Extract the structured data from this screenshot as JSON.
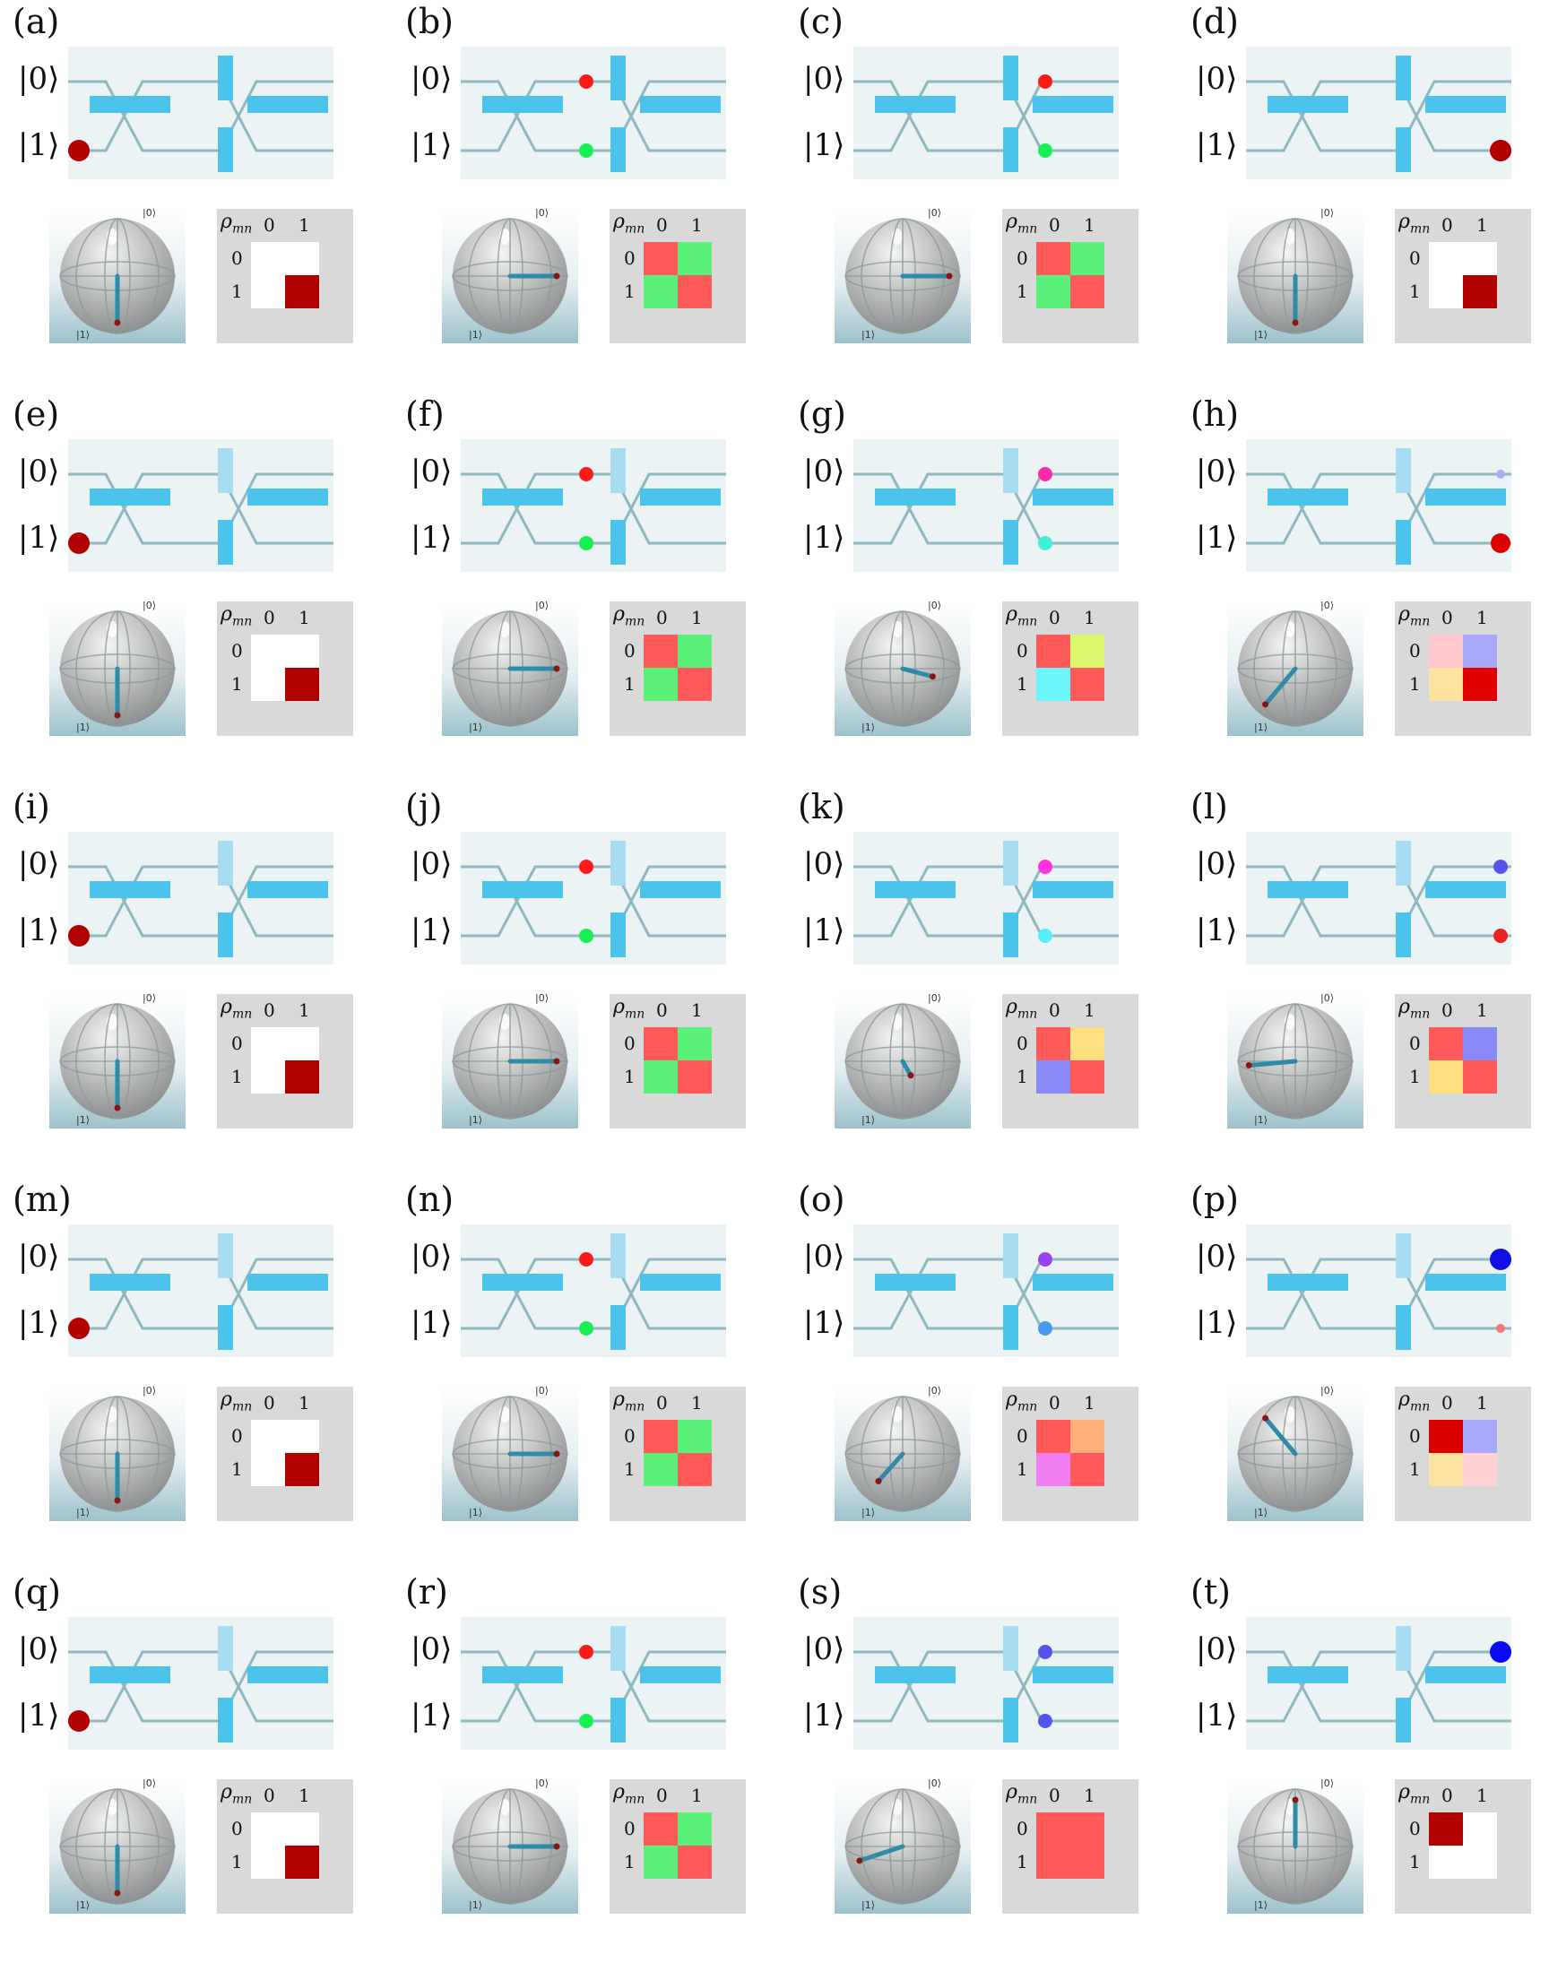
{
  "figure": {
    "ket0_label": "|0⟩",
    "ket1_label": "|1⟩",
    "bloch_top_label": "|0⟩",
    "bloch_bottom_label": "|1⟩",
    "rho_label": "ρ",
    "rho_sub": "mn",
    "rho_col0": "0",
    "rho_col1": "1",
    "rho_row0": "0",
    "rho_row1": "1",
    "colors": {
      "circuit_bg": "#ebf3f5",
      "waveguide": "#90b8c0",
      "beamsplitter": "#4cc3ea",
      "phase_light": "#a6ddf3",
      "phase_strong": "#2cb7ea",
      "rho_bg": "#d9d9d9"
    }
  },
  "panels": [
    {
      "label": "(a)",
      "step": 0,
      "photons": [
        {
          "pos": "in1",
          "color": "#b00000",
          "r": 12
        }
      ],
      "bloch": {
        "theta": 180,
        "phi": 0
      },
      "rho": [
        "#ffffff",
        "#ffffff",
        "#ffffff",
        "#b00000"
      ],
      "phase": {
        "top": "strong",
        "bottom": "strong"
      }
    },
    {
      "label": "(b)",
      "step": 1,
      "photons": [
        {
          "pos": "m0",
          "color": "#ff1a1a",
          "r": 8
        },
        {
          "pos": "m1",
          "color": "#1aee55",
          "r": 8
        }
      ],
      "bloch": {
        "theta": 90,
        "phi": 0
      },
      "rho": [
        "#ff5a5a",
        "#5af07a",
        "#5af07a",
        "#ff5a5a"
      ],
      "phase": {
        "top": "strong",
        "bottom": "strong"
      }
    },
    {
      "label": "(c)",
      "step": 2,
      "photons": [
        {
          "pos": "p0",
          "color": "#ff1a1a",
          "r": 8
        },
        {
          "pos": "p1",
          "color": "#1aee55",
          "r": 8
        }
      ],
      "bloch": {
        "theta": 90,
        "phi": 0
      },
      "rho": [
        "#ff5a5a",
        "#5af07a",
        "#5af07a",
        "#ff5a5a"
      ],
      "phase": {
        "top": "strong",
        "bottom": "strong"
      }
    },
    {
      "label": "(d)",
      "step": 3,
      "photons": [
        {
          "pos": "out1",
          "color": "#b00000",
          "r": 12
        }
      ],
      "bloch": {
        "theta": 180,
        "phi": 0
      },
      "rho": [
        "#ffffff",
        "#ffffff",
        "#ffffff",
        "#b00000"
      ],
      "phase": {
        "top": "strong",
        "bottom": "strong"
      }
    },
    {
      "label": "(e)",
      "step": 0,
      "photons": [
        {
          "pos": "in1",
          "color": "#b00000",
          "r": 12
        }
      ],
      "bloch": {
        "theta": 180,
        "phi": 0
      },
      "rho": [
        "#ffffff",
        "#ffffff",
        "#ffffff",
        "#b00000"
      ],
      "phase": {
        "top": "light",
        "bottom": "strong"
      }
    },
    {
      "label": "(f)",
      "step": 1,
      "photons": [
        {
          "pos": "m0",
          "color": "#ff1a1a",
          "r": 8
        },
        {
          "pos": "m1",
          "color": "#1aee55",
          "r": 8
        }
      ],
      "bloch": {
        "theta": 90,
        "phi": 0
      },
      "rho": [
        "#ff5a5a",
        "#5af07a",
        "#5af07a",
        "#ff5a5a"
      ],
      "phase": {
        "top": "light",
        "bottom": "strong"
      }
    },
    {
      "label": "(g)",
      "step": 2,
      "photons": [
        {
          "pos": "p0",
          "color": "#ff2aa8",
          "r": 8
        },
        {
          "pos": "p1",
          "color": "#40f0d8",
          "r": 8
        }
      ],
      "bloch": {
        "theta": 90,
        "phi": 50
      },
      "rho": [
        "#ff5a5a",
        "#ddf76c",
        "#6cf6fb",
        "#ff5a5a"
      ],
      "phase": {
        "top": "light",
        "bottom": "strong"
      }
    },
    {
      "label": "(h)",
      "step": 3,
      "photons": [
        {
          "pos": "out0",
          "color": "#aab0f0",
          "r": 5
        },
        {
          "pos": "out1",
          "color": "#dd0000",
          "r": 11
        }
      ],
      "bloch": {
        "theta": 140,
        "phi": 180
      },
      "rho": [
        "#ffc8cc",
        "#a8a8fb",
        "#fde3a0",
        "#e00000"
      ],
      "phase": {
        "top": "light",
        "bottom": "strong"
      }
    },
    {
      "label": "(i)",
      "step": 0,
      "photons": [
        {
          "pos": "in1",
          "color": "#b00000",
          "r": 12
        }
      ],
      "bloch": {
        "theta": 180,
        "phi": 0
      },
      "rho": [
        "#ffffff",
        "#ffffff",
        "#ffffff",
        "#b00000"
      ],
      "phase": {
        "top": "light",
        "bottom": "strong"
      }
    },
    {
      "label": "(j)",
      "step": 1,
      "photons": [
        {
          "pos": "m0",
          "color": "#ff1a1a",
          "r": 8
        },
        {
          "pos": "m1",
          "color": "#1aee55",
          "r": 8
        }
      ],
      "bloch": {
        "theta": 90,
        "phi": 0
      },
      "rho": [
        "#ff5a5a",
        "#5af07a",
        "#5af07a",
        "#ff5a5a"
      ],
      "phase": {
        "top": "light",
        "bottom": "strong"
      }
    },
    {
      "label": "(k)",
      "step": 2,
      "photons": [
        {
          "pos": "p0",
          "color": "#ff33dd",
          "r": 8
        },
        {
          "pos": "p1",
          "color": "#55eefa",
          "r": 8
        }
      ],
      "bloch": {
        "theta": 95,
        "phi": 80
      },
      "rho": [
        "#ff5a5a",
        "#ffe080",
        "#8a8af6",
        "#ff5a5a"
      ],
      "phase": {
        "top": "light",
        "bottom": "strong"
      }
    },
    {
      "label": "(l)",
      "step": 3,
      "photons": [
        {
          "pos": "out0",
          "color": "#5555ee",
          "r": 8
        },
        {
          "pos": "out1",
          "color": "#ee2222",
          "r": 8
        }
      ],
      "bloch": {
        "theta": 95,
        "phi": 180
      },
      "rho": [
        "#ff5a5a",
        "#8a8af6",
        "#ffe080",
        "#ff5a5a"
      ],
      "phase": {
        "top": "light",
        "bottom": "strong"
      }
    },
    {
      "label": "(m)",
      "step": 0,
      "photons": [
        {
          "pos": "in1",
          "color": "#b00000",
          "r": 12
        }
      ],
      "bloch": {
        "theta": 180,
        "phi": 0
      },
      "rho": [
        "#ffffff",
        "#ffffff",
        "#ffffff",
        "#b00000"
      ],
      "phase": {
        "top": "light",
        "bottom": "strong"
      }
    },
    {
      "label": "(n)",
      "step": 1,
      "photons": [
        {
          "pos": "m0",
          "color": "#ff1a1a",
          "r": 8
        },
        {
          "pos": "m1",
          "color": "#1aee55",
          "r": 8
        }
      ],
      "bloch": {
        "theta": 90,
        "phi": 0
      },
      "rho": [
        "#ff5a5a",
        "#5af07a",
        "#5af07a",
        "#ff5a5a"
      ],
      "phase": {
        "top": "light",
        "bottom": "strong"
      }
    },
    {
      "label": "(o)",
      "step": 2,
      "photons": [
        {
          "pos": "p0",
          "color": "#9a44ee",
          "r": 8
        },
        {
          "pos": "p1",
          "color": "#4a99ee",
          "r": 8
        }
      ],
      "bloch": {
        "theta": 115,
        "phi": 125
      },
      "rho": [
        "#ff5a5a",
        "#ffb07a",
        "#f07ef0",
        "#ff5a5a"
      ],
      "phase": {
        "top": "light",
        "bottom": "strong"
      }
    },
    {
      "label": "(p)",
      "step": 3,
      "photons": [
        {
          "pos": "out0",
          "color": "#0f0fe6",
          "r": 12
        },
        {
          "pos": "out1",
          "color": "#f07a7a",
          "r": 5
        }
      ],
      "bloch": {
        "theta": 40,
        "phi": 180
      },
      "rho": [
        "#dd0000",
        "#a8a8fb",
        "#fde3a0",
        "#ffd0d4"
      ],
      "phase": {
        "top": "light",
        "bottom": "strong"
      }
    },
    {
      "label": "(q)",
      "step": 0,
      "photons": [
        {
          "pos": "in1",
          "color": "#b00000",
          "r": 12
        }
      ],
      "bloch": {
        "theta": 180,
        "phi": 0
      },
      "rho": [
        "#ffffff",
        "#ffffff",
        "#ffffff",
        "#b00000"
      ],
      "phase": {
        "top": "light",
        "bottom": "strong"
      }
    },
    {
      "label": "(r)",
      "step": 1,
      "photons": [
        {
          "pos": "m0",
          "color": "#ff1a1a",
          "r": 8
        },
        {
          "pos": "m1",
          "color": "#1aee55",
          "r": 8
        }
      ],
      "bloch": {
        "theta": 90,
        "phi": 0
      },
      "rho": [
        "#ff5a5a",
        "#5af07a",
        "#5af07a",
        "#ff5a5a"
      ],
      "phase": {
        "top": "light",
        "bottom": "strong"
      }
    },
    {
      "label": "(s)",
      "step": 2,
      "photons": [
        {
          "pos": "p0",
          "color": "#5555ee",
          "r": 8
        },
        {
          "pos": "p1",
          "color": "#5555ee",
          "r": 8
        }
      ],
      "bloch": {
        "theta": 110,
        "phi": 190
      },
      "rho": [
        "#ff5a5a",
        "#ff5a5a",
        "#ff5a5a",
        "#ff5a5a"
      ],
      "phase": {
        "top": "light",
        "bottom": "strong"
      }
    },
    {
      "label": "(t)",
      "step": 3,
      "photons": [
        {
          "pos": "out0",
          "color": "#0a0af0",
          "r": 12
        }
      ],
      "bloch": {
        "theta": 0,
        "phi": 0
      },
      "rho": [
        "#b00000",
        "#ffffff",
        "#ffffff",
        "#ffffff"
      ],
      "phase": {
        "top": "light",
        "bottom": "strong"
      }
    }
  ]
}
